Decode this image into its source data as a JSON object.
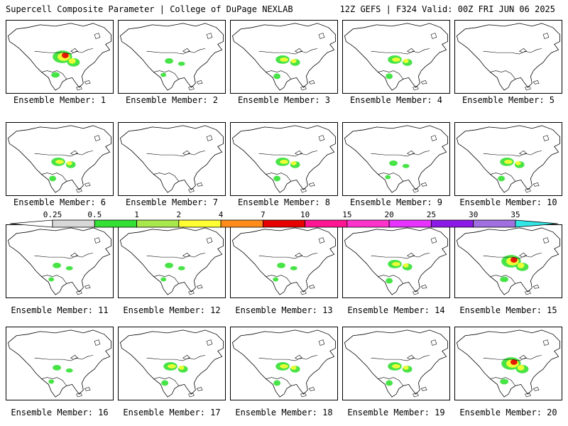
{
  "header": {
    "title": "Supercell Composite Parameter | College of DuPage NEXLAB",
    "run_info": "12Z GEFS | F324 Valid: 00Z FRI JUN 06 2025"
  },
  "member_label_prefix": "Ensemble Member:",
  "members": [
    {
      "label": "Ensemble Member: 1",
      "intensity": "high"
    },
    {
      "label": "Ensemble Member: 2",
      "intensity": "low"
    },
    {
      "label": "Ensemble Member: 3",
      "intensity": "med"
    },
    {
      "label": "Ensemble Member: 4",
      "intensity": "med"
    },
    {
      "label": "Ensemble Member: 5",
      "intensity": "none"
    },
    {
      "label": "Ensemble Member: 6",
      "intensity": "med"
    },
    {
      "label": "Ensemble Member: 7",
      "intensity": "none"
    },
    {
      "label": "Ensemble Member: 8",
      "intensity": "med"
    },
    {
      "label": "Ensemble Member: 9",
      "intensity": "low"
    },
    {
      "label": "Ensemble Member: 10",
      "intensity": "med"
    },
    {
      "label": "Ensemble Member: 11",
      "intensity": "low"
    },
    {
      "label": "Ensemble Member: 12",
      "intensity": "low"
    },
    {
      "label": "Ensemble Member: 13",
      "intensity": "low"
    },
    {
      "label": "Ensemble Member: 14",
      "intensity": "med"
    },
    {
      "label": "Ensemble Member: 15",
      "intensity": "high"
    },
    {
      "label": "Ensemble Member: 16",
      "intensity": "low"
    },
    {
      "label": "Ensemble Member: 17",
      "intensity": "med"
    },
    {
      "label": "Ensemble Member: 18",
      "intensity": "med"
    },
    {
      "label": "Ensemble Member: 19",
      "intensity": "med"
    },
    {
      "label": "Ensemble Member: 20",
      "intensity": "high"
    }
  ],
  "colorbar": {
    "ticks": [
      "0.25",
      "0.5",
      "1",
      "2",
      "4",
      "7",
      "10",
      "15",
      "20",
      "25",
      "30",
      "35"
    ],
    "colors": [
      "#d8d8d8",
      "#33e033",
      "#a8e84a",
      "#ffff33",
      "#ff8c1a",
      "#e60000",
      "#ff1493",
      "#ff33cc",
      "#e633ff",
      "#8c1ae6",
      "#a070e0",
      "#33e6e6"
    ]
  },
  "colors": {
    "land_outline": "#000000",
    "scp_low": "#33e033",
    "scp_mid": "#ffff33",
    "scp_high": "#e60000"
  }
}
